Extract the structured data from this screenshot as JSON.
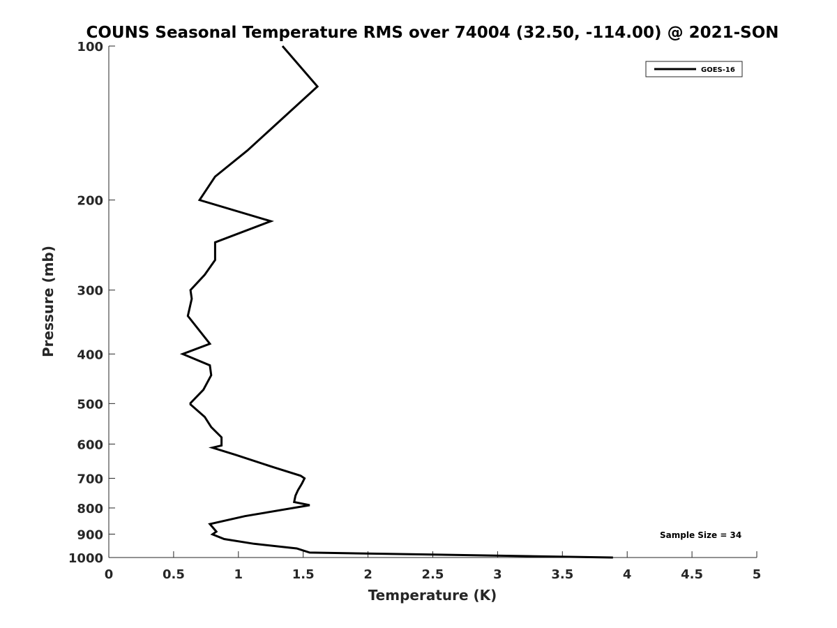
{
  "chart_data": {
    "type": "line",
    "title": "COUNS Seasonal Temperature RMS over 74004 (32.50, -114.00) @ 2021-SON",
    "xlabel": "Temperature (K)",
    "ylabel": "Pressure (mb)",
    "xlim": [
      0,
      5
    ],
    "ylim": [
      100,
      1000
    ],
    "yscale": "log",
    "y_reversed": true,
    "grid": false,
    "x_ticks": [
      0,
      0.5,
      1,
      1.5,
      2,
      2.5,
      3,
      3.5,
      4,
      4.5,
      5
    ],
    "x_tick_labels": [
      "0",
      "0.5",
      "1",
      "1.5",
      "2",
      "2.5",
      "3",
      "3.5",
      "4",
      "4.5",
      "5"
    ],
    "y_ticks": [
      100,
      200,
      300,
      400,
      500,
      600,
      700,
      800,
      900,
      1000
    ],
    "y_tick_labels": [
      "100",
      "200",
      "300",
      "400",
      "500",
      "600",
      "700",
      "800",
      "900",
      "1000"
    ],
    "legend_position": "top-right",
    "annotation": "Sample Size = 34",
    "series": [
      {
        "name": "GOES-16",
        "color": "#000000",
        "x": [
          1.34,
          1.61,
          1.07,
          0.82,
          0.7,
          1.25,
          0.82,
          0.82,
          0.74,
          0.63,
          0.64,
          0.61,
          0.78,
          0.57,
          0.78,
          0.79,
          0.73,
          0.63,
          0.63,
          0.74,
          0.79,
          0.87,
          0.87,
          0.8,
          0.98,
          1.27,
          1.48,
          1.51,
          1.49,
          1.46,
          1.44,
          1.43,
          1.55,
          1.05,
          0.78,
          0.83,
          0.8,
          0.89,
          1.12,
          1.45,
          1.55,
          3.89
        ],
        "y": [
          100,
          120,
          160,
          180,
          200,
          220,
          242,
          262,
          280,
          300,
          312,
          337,
          382,
          400,
          421,
          440,
          470,
          499,
          502,
          531,
          556,
          582,
          604,
          610,
          630,
          666,
          692,
          700,
          717,
          738,
          757,
          779,
          790,
          830,
          860,
          890,
          901,
          920,
          940,
          960,
          978,
          1000
        ]
      }
    ]
  }
}
